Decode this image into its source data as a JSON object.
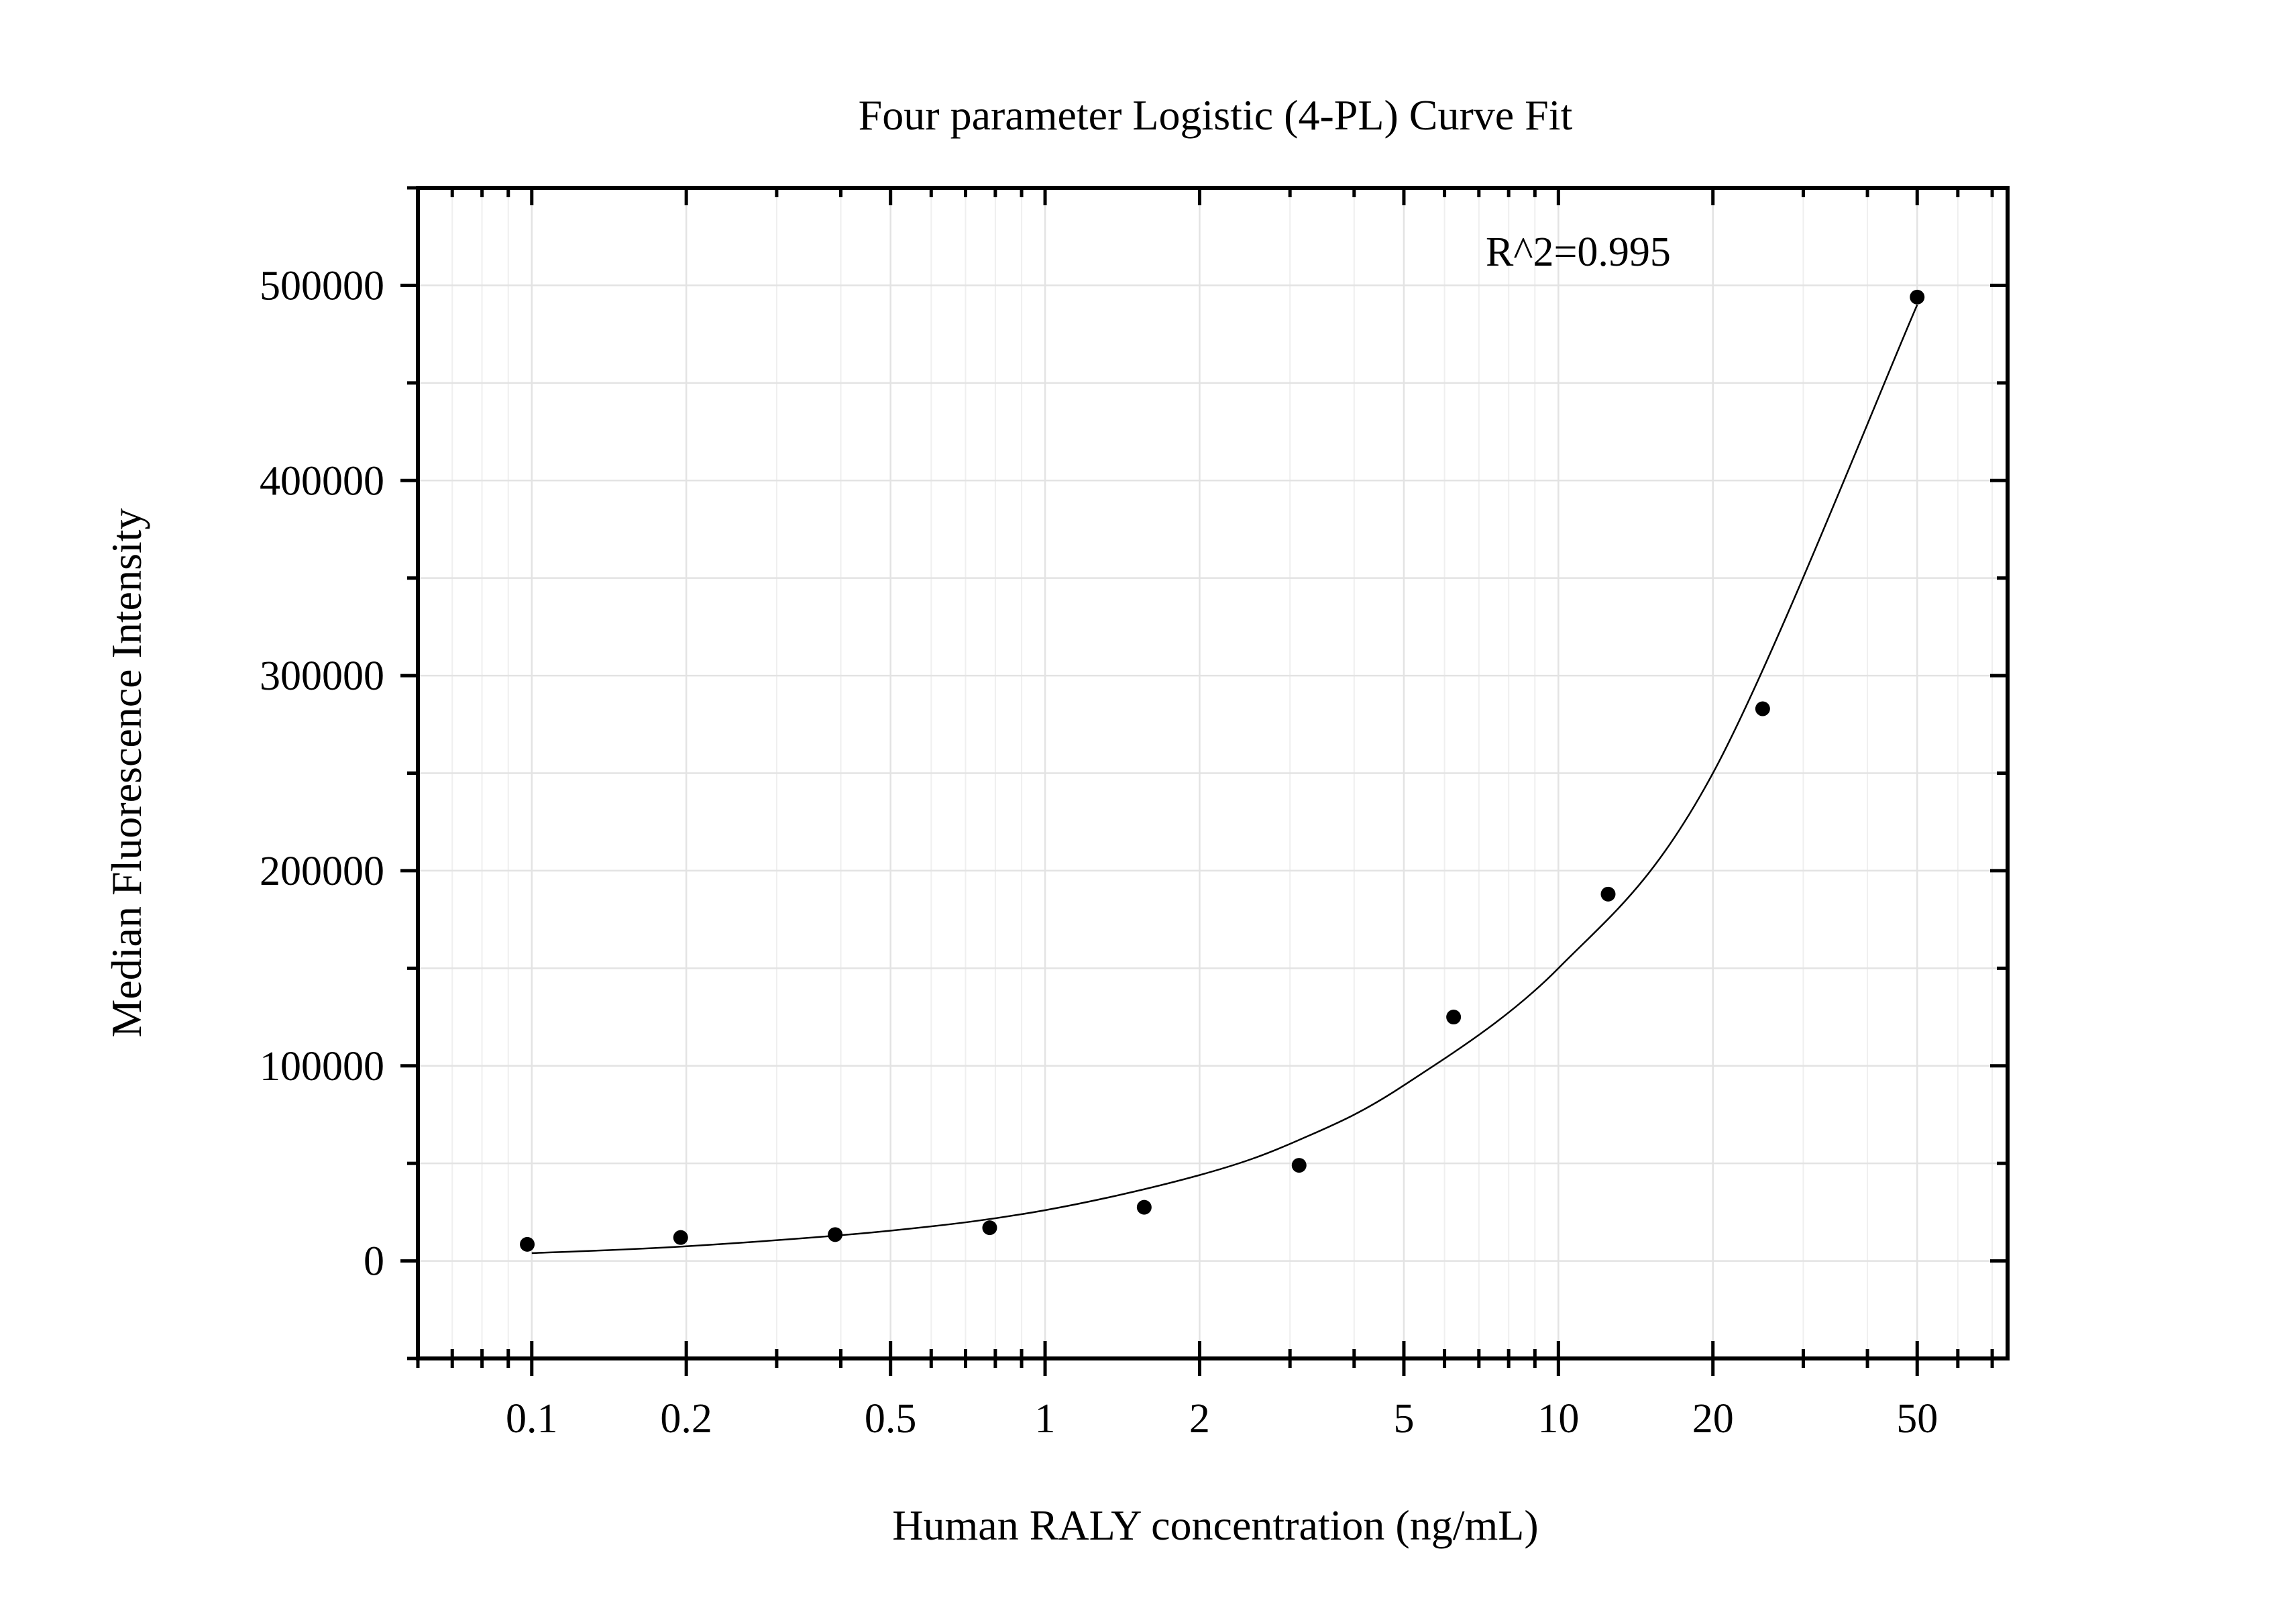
{
  "chart_data": {
    "type": "scatter",
    "title": "Four parameter Logistic (4-PL) Curve Fit",
    "xlabel": "Human RALY concentration (ng/mL)",
    "ylabel": "Median Fluorescence Intensity",
    "annotation": "R^2=0.995",
    "x_scale": "log",
    "xlim": [
      0.06,
      75
    ],
    "ylim": [
      -50000,
      550000
    ],
    "x_ticks": [
      0.1,
      0.2,
      0.5,
      1,
      2,
      5,
      10,
      20,
      50
    ],
    "x_tick_labels": [
      "0.1",
      "0.2",
      "0.5",
      "1",
      "2",
      "5",
      "10",
      "20",
      "50"
    ],
    "y_ticks": [
      0,
      100000,
      200000,
      300000,
      400000,
      500000
    ],
    "y_tick_labels": [
      "0",
      "100000",
      "200000",
      "300000",
      "400000",
      "500000"
    ],
    "grid": true,
    "series": [
      {
        "x": [
          0.098,
          0.195,
          0.39,
          0.78,
          1.56,
          3.125,
          6.25,
          12.5,
          25,
          50
        ],
        "y": [
          8500,
          12000,
          13500,
          17000,
          27500,
          49000,
          125000,
          188000,
          283000,
          494000
        ]
      }
    ],
    "fit_curve": {
      "x": [
        0.1,
        0.2,
        0.5,
        1,
        2,
        3.125,
        5,
        10,
        20,
        50
      ],
      "y": [
        4000,
        7500,
        15500,
        26000,
        44000,
        62000,
        90000,
        150000,
        250000,
        490000
      ]
    }
  }
}
